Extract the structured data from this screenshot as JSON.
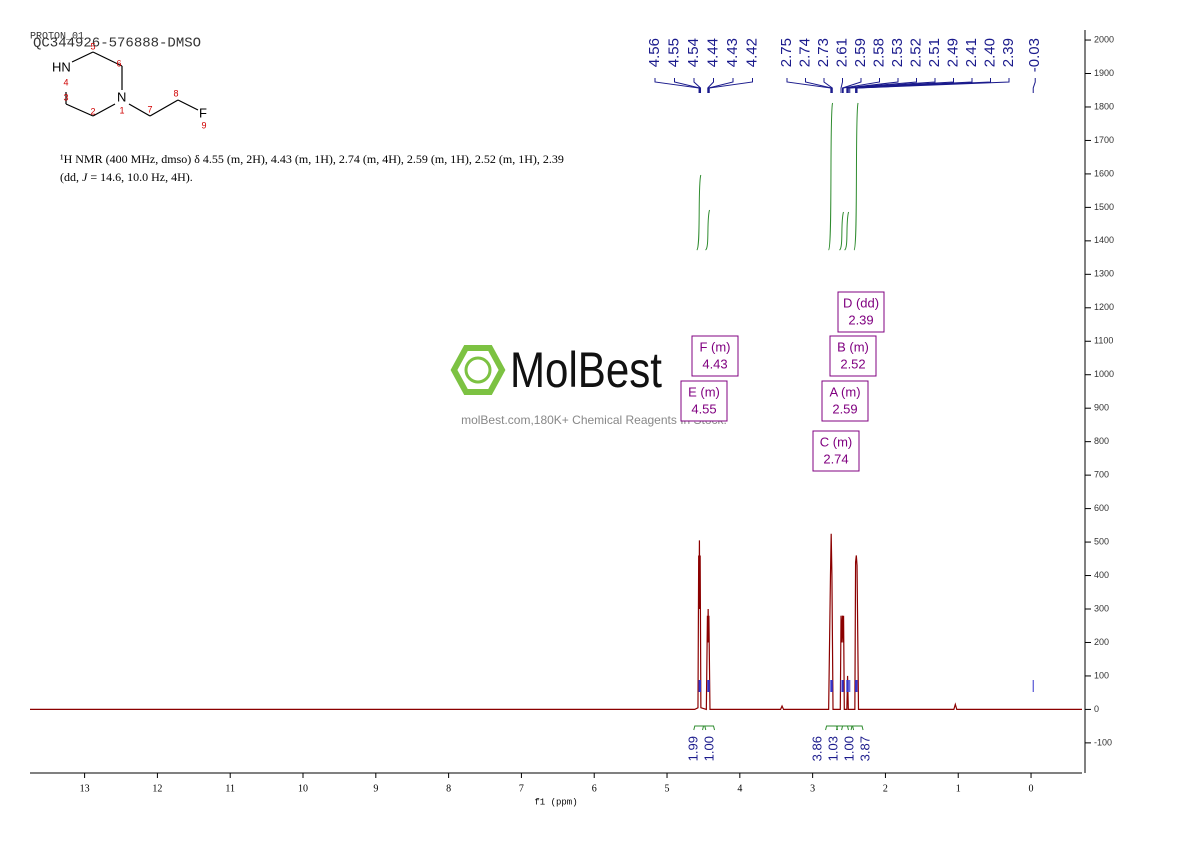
{
  "chart_data": {
    "type": "line",
    "title": "QC344926-576888-DMSO",
    "subtitle": "PROTON_01",
    "xlabel": "f1 (ppm)",
    "color": "#8b0000",
    "x": [
      13.75,
      4.62,
      4.575,
      4.565,
      4.56,
      4.555,
      4.55,
      4.545,
      4.535,
      4.46,
      4.445,
      4.44,
      4.435,
      4.43,
      4.425,
      4.41,
      3.44,
      3.42,
      3.4,
      2.78,
      2.755,
      2.745,
      2.735,
      2.72,
      2.62,
      2.61,
      2.6,
      2.59,
      2.58,
      2.575,
      2.565,
      2.53,
      2.52,
      2.51,
      2.42,
      2.41,
      2.4,
      2.39,
      2.37,
      1.06,
      1.04,
      1.02,
      -0.7
    ],
    "values": [
      0,
      0,
      5,
      460,
      300,
      505,
      300,
      460,
      5,
      0,
      280,
      200,
      300,
      200,
      280,
      0,
      0,
      10,
      0,
      0,
      400,
      525,
      400,
      0,
      0,
      280,
      200,
      280,
      200,
      280,
      0,
      0,
      100,
      0,
      0,
      440,
      460,
      430,
      0,
      0,
      15,
      0,
      0
    ],
    "xlim": [
      13.75,
      -0.7
    ],
    "ylim": [
      -190,
      2030
    ],
    "xticks": [
      13,
      12,
      11,
      10,
      9,
      8,
      7,
      6,
      5,
      4,
      3,
      2,
      1,
      0
    ],
    "yticks": [
      -100,
      0,
      100,
      200,
      300,
      400,
      500,
      600,
      700,
      800,
      900,
      1000,
      1100,
      1200,
      1300,
      1400,
      1500,
      1600,
      1700,
      1800,
      1900,
      2000
    ],
    "peak_labels": [
      4.56,
      4.55,
      4.54,
      4.44,
      4.43,
      4.42,
      2.75,
      2.74,
      2.73,
      2.61,
      2.59,
      2.58,
      2.53,
      2.52,
      2.51,
      2.49,
      2.41,
      {
        "value": 2.4,
        "label": "2.40"
      },
      2.39,
      -0.03
    ],
    "integrals": {
      "x": [
        4.55,
        4.43,
        2.74,
        2.59,
        2.52,
        2.39
      ],
      "values": [
        1.99,
        {
          "value": 1,
          "label": "1.00"
        },
        3.86,
        1.03,
        {
          "value": 1,
          "label": "1.00"
        },
        3.87
      ]
    },
    "multiplets": [
      {
        "label": "F (m)",
        "shift": 4.43
      },
      {
        "label": "B (m)",
        "shift": 2.52
      },
      {
        "label": "D (dd)",
        "shift": 2.39
      },
      {
        "label": "E (m)",
        "shift": 4.55
      },
      {
        "label": "A (m)",
        "shift": 2.59
      },
      {
        "label": "C (m)",
        "shift": 2.74
      }
    ],
    "description": [
      "¹H NMR (400 MHz, dmso) δ 4.55 (m, 2H), 4.43 (m, 1H), 2.74 (m, 4H), 2.59 (m, 1H), 2.52 (m, 1H), 2.39",
      "(dd, ",
      "J",
      " = 14.6, 10.0 Hz, 4H)."
    ]
  },
  "structure": {
    "atoms": [
      "HN",
      "N",
      "F"
    ],
    "numbers": [
      "1",
      "2",
      "3",
      "4",
      "5",
      "6",
      "7",
      "8",
      "9"
    ]
  },
  "watermark": {
    "logo": "MolBest",
    "text": "molBest.com,180K+ Chemical Reagents In Stock."
  }
}
